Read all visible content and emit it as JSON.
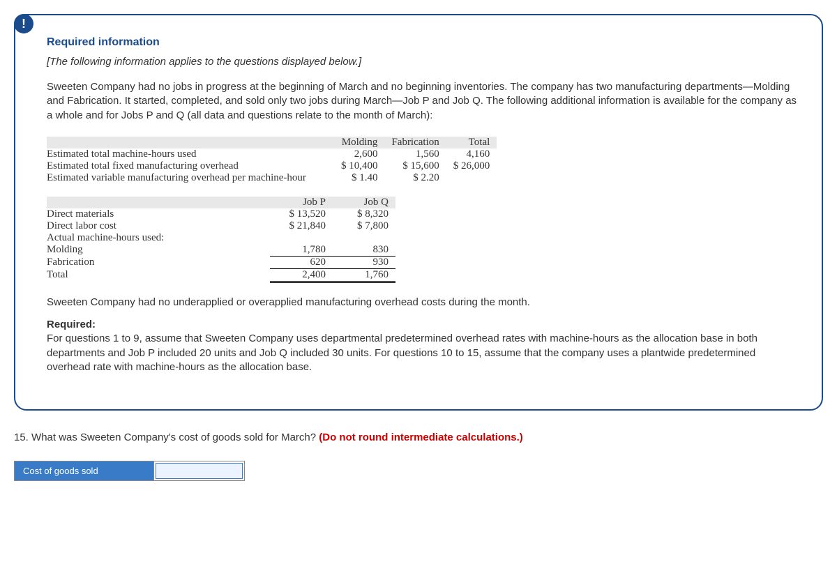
{
  "infoBox": {
    "alertGlyph": "!",
    "header": "Required information",
    "note": "[The following information applies to the questions displayed below.]",
    "intro": "Sweeten Company had no jobs in progress at the beginning of March and no beginning inventories. The company has two manufacturing departments—Molding and Fabrication. It started, completed, and sold only two jobs during March—Job P and Job Q. The following additional information is available for the company as a whole and for Jobs P and Q (all data and questions relate to the month of March):",
    "afterTables": "Sweeten Company had no underapplied or overapplied manufacturing overhead costs during the month.",
    "requiredLabel": "Required:",
    "requiredText": "For questions 1 to 9, assume that Sweeten Company uses departmental predetermined overhead rates with machine-hours as the allocation base in both departments and Job P included 20 units and Job Q included 30 units. For questions 10 to 15, assume that the company uses a plantwide predetermined overhead rate with machine-hours as the allocation base."
  },
  "table1": {
    "cols": [
      "Molding",
      "Fabrication",
      "Total"
    ],
    "rows": [
      {
        "label": "Estimated total machine-hours used",
        "vals": [
          "2,600",
          "1,560",
          "4,160"
        ]
      },
      {
        "label": "Estimated total fixed manufacturing overhead",
        "vals": [
          "$ 10,400",
          "$ 15,600",
          "$ 26,000"
        ]
      },
      {
        "label": "Estimated variable manufacturing overhead per machine-hour",
        "vals": [
          "$ 1.40",
          "$ 2.20",
          ""
        ]
      }
    ]
  },
  "table2": {
    "cols": [
      "Job P",
      "Job Q"
    ],
    "rows": [
      {
        "label": "Direct materials",
        "vals": [
          "$ 13,520",
          "$ 8,320"
        ]
      },
      {
        "label": "Direct labor cost",
        "vals": [
          "$ 21,840",
          "$ 7,800"
        ]
      },
      {
        "label": "Actual machine-hours used:",
        "vals": [
          "",
          ""
        ]
      },
      {
        "label": "Molding",
        "vals": [
          "1,780",
          "830"
        ]
      },
      {
        "label": "Fabrication",
        "vals": [
          "620",
          "930"
        ],
        "subtotal": true
      },
      {
        "label": "Total",
        "vals": [
          "2,400",
          "1,760"
        ],
        "total": true
      }
    ]
  },
  "question": {
    "number": "15.",
    "text": "What was Sweeten Company's cost of goods sold for March?",
    "note": "(Do not round intermediate calculations.)"
  },
  "answerTable": {
    "label": "Cost of goods sold",
    "value": ""
  }
}
